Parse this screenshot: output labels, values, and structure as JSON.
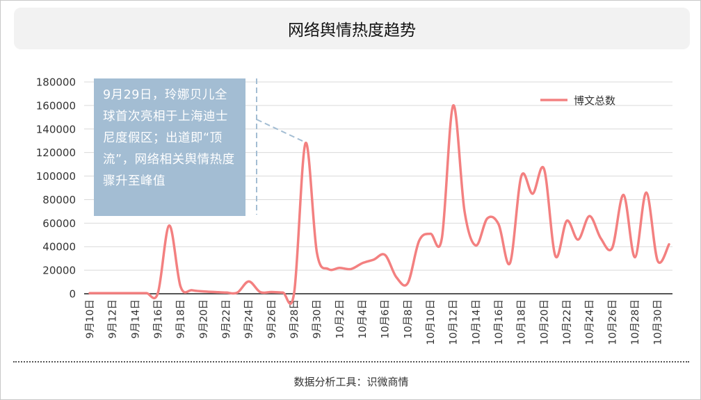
{
  "title": "网络舆情热度趋势",
  "annotation": "9月29日，玲娜贝儿全球首次亮相于上海迪士尼度假区；出道即“顶流”，网络相关舆情热度骤升至峰值",
  "footer": "数据分析工具：识微商情",
  "colors": {
    "line": "#f38080",
    "annotation_bg": "#a3bdd3",
    "grid": "#d9d9d9",
    "axis": "#555555"
  },
  "chart_data": {
    "type": "line",
    "title": "网络舆情热度趋势",
    "xlabel": "",
    "ylabel": "",
    "ylim": [
      0,
      180000
    ],
    "yticks": [
      0,
      20000,
      40000,
      60000,
      80000,
      100000,
      120000,
      140000,
      160000,
      180000
    ],
    "grid": true,
    "legend_position": "top-right",
    "x": [
      "9月10日",
      "9月11日",
      "9月12日",
      "9月13日",
      "9月14日",
      "9月15日",
      "9月16日",
      "9月17日",
      "9月18日",
      "9月19日",
      "9月20日",
      "9月21日",
      "9月22日",
      "9月23日",
      "9月24日",
      "9月25日",
      "9月26日",
      "9月27日",
      "9月28日",
      "9月29日",
      "9月30日",
      "10月1日",
      "10月2日",
      "10月3日",
      "10月4日",
      "10月5日",
      "10月6日",
      "10月7日",
      "10月8日",
      "10月9日",
      "10月10日",
      "10月11日",
      "10月12日",
      "10月13日",
      "10月14日",
      "10月15日",
      "10月16日",
      "10月17日",
      "10月18日",
      "10月19日",
      "10月20日",
      "10月21日",
      "10月22日",
      "10月23日",
      "10月24日",
      "10月25日",
      "10月26日",
      "10月27日",
      "10月28日",
      "10月29日",
      "10月30日",
      "10月31日"
    ],
    "tick_labels": [
      "9月10日",
      "9月12日",
      "9月14日",
      "9月16日",
      "9月18日",
      "9月20日",
      "9月22日",
      "9月24日",
      "9月26日",
      "9月28日",
      "9月30日",
      "10月2日",
      "10月4日",
      "10月6日",
      "10月8日",
      "10月10日",
      "10月12日",
      "10月14日",
      "10月16日",
      "10月18日",
      "10月20日",
      "10月22日",
      "10月24日",
      "10月26日",
      "10月28日",
      "10月30日"
    ],
    "series": [
      {
        "name": "博文总数",
        "values": [
          500,
          500,
          500,
          500,
          500,
          500,
          500,
          58000,
          6000,
          3000,
          2000,
          1500,
          1000,
          1000,
          10500,
          1500,
          1500,
          1000,
          1000,
          128000,
          35000,
          21000,
          22000,
          21000,
          26000,
          29000,
          33000,
          14000,
          9000,
          45000,
          51000,
          47000,
          160000,
          70000,
          41000,
          64000,
          59000,
          26000,
          100000,
          85000,
          106000,
          32000,
          62000,
          46000,
          66000,
          47000,
          39000,
          84000,
          31000,
          86000,
          28000,
          42000
        ]
      }
    ],
    "annotation_target": "9月29日"
  }
}
